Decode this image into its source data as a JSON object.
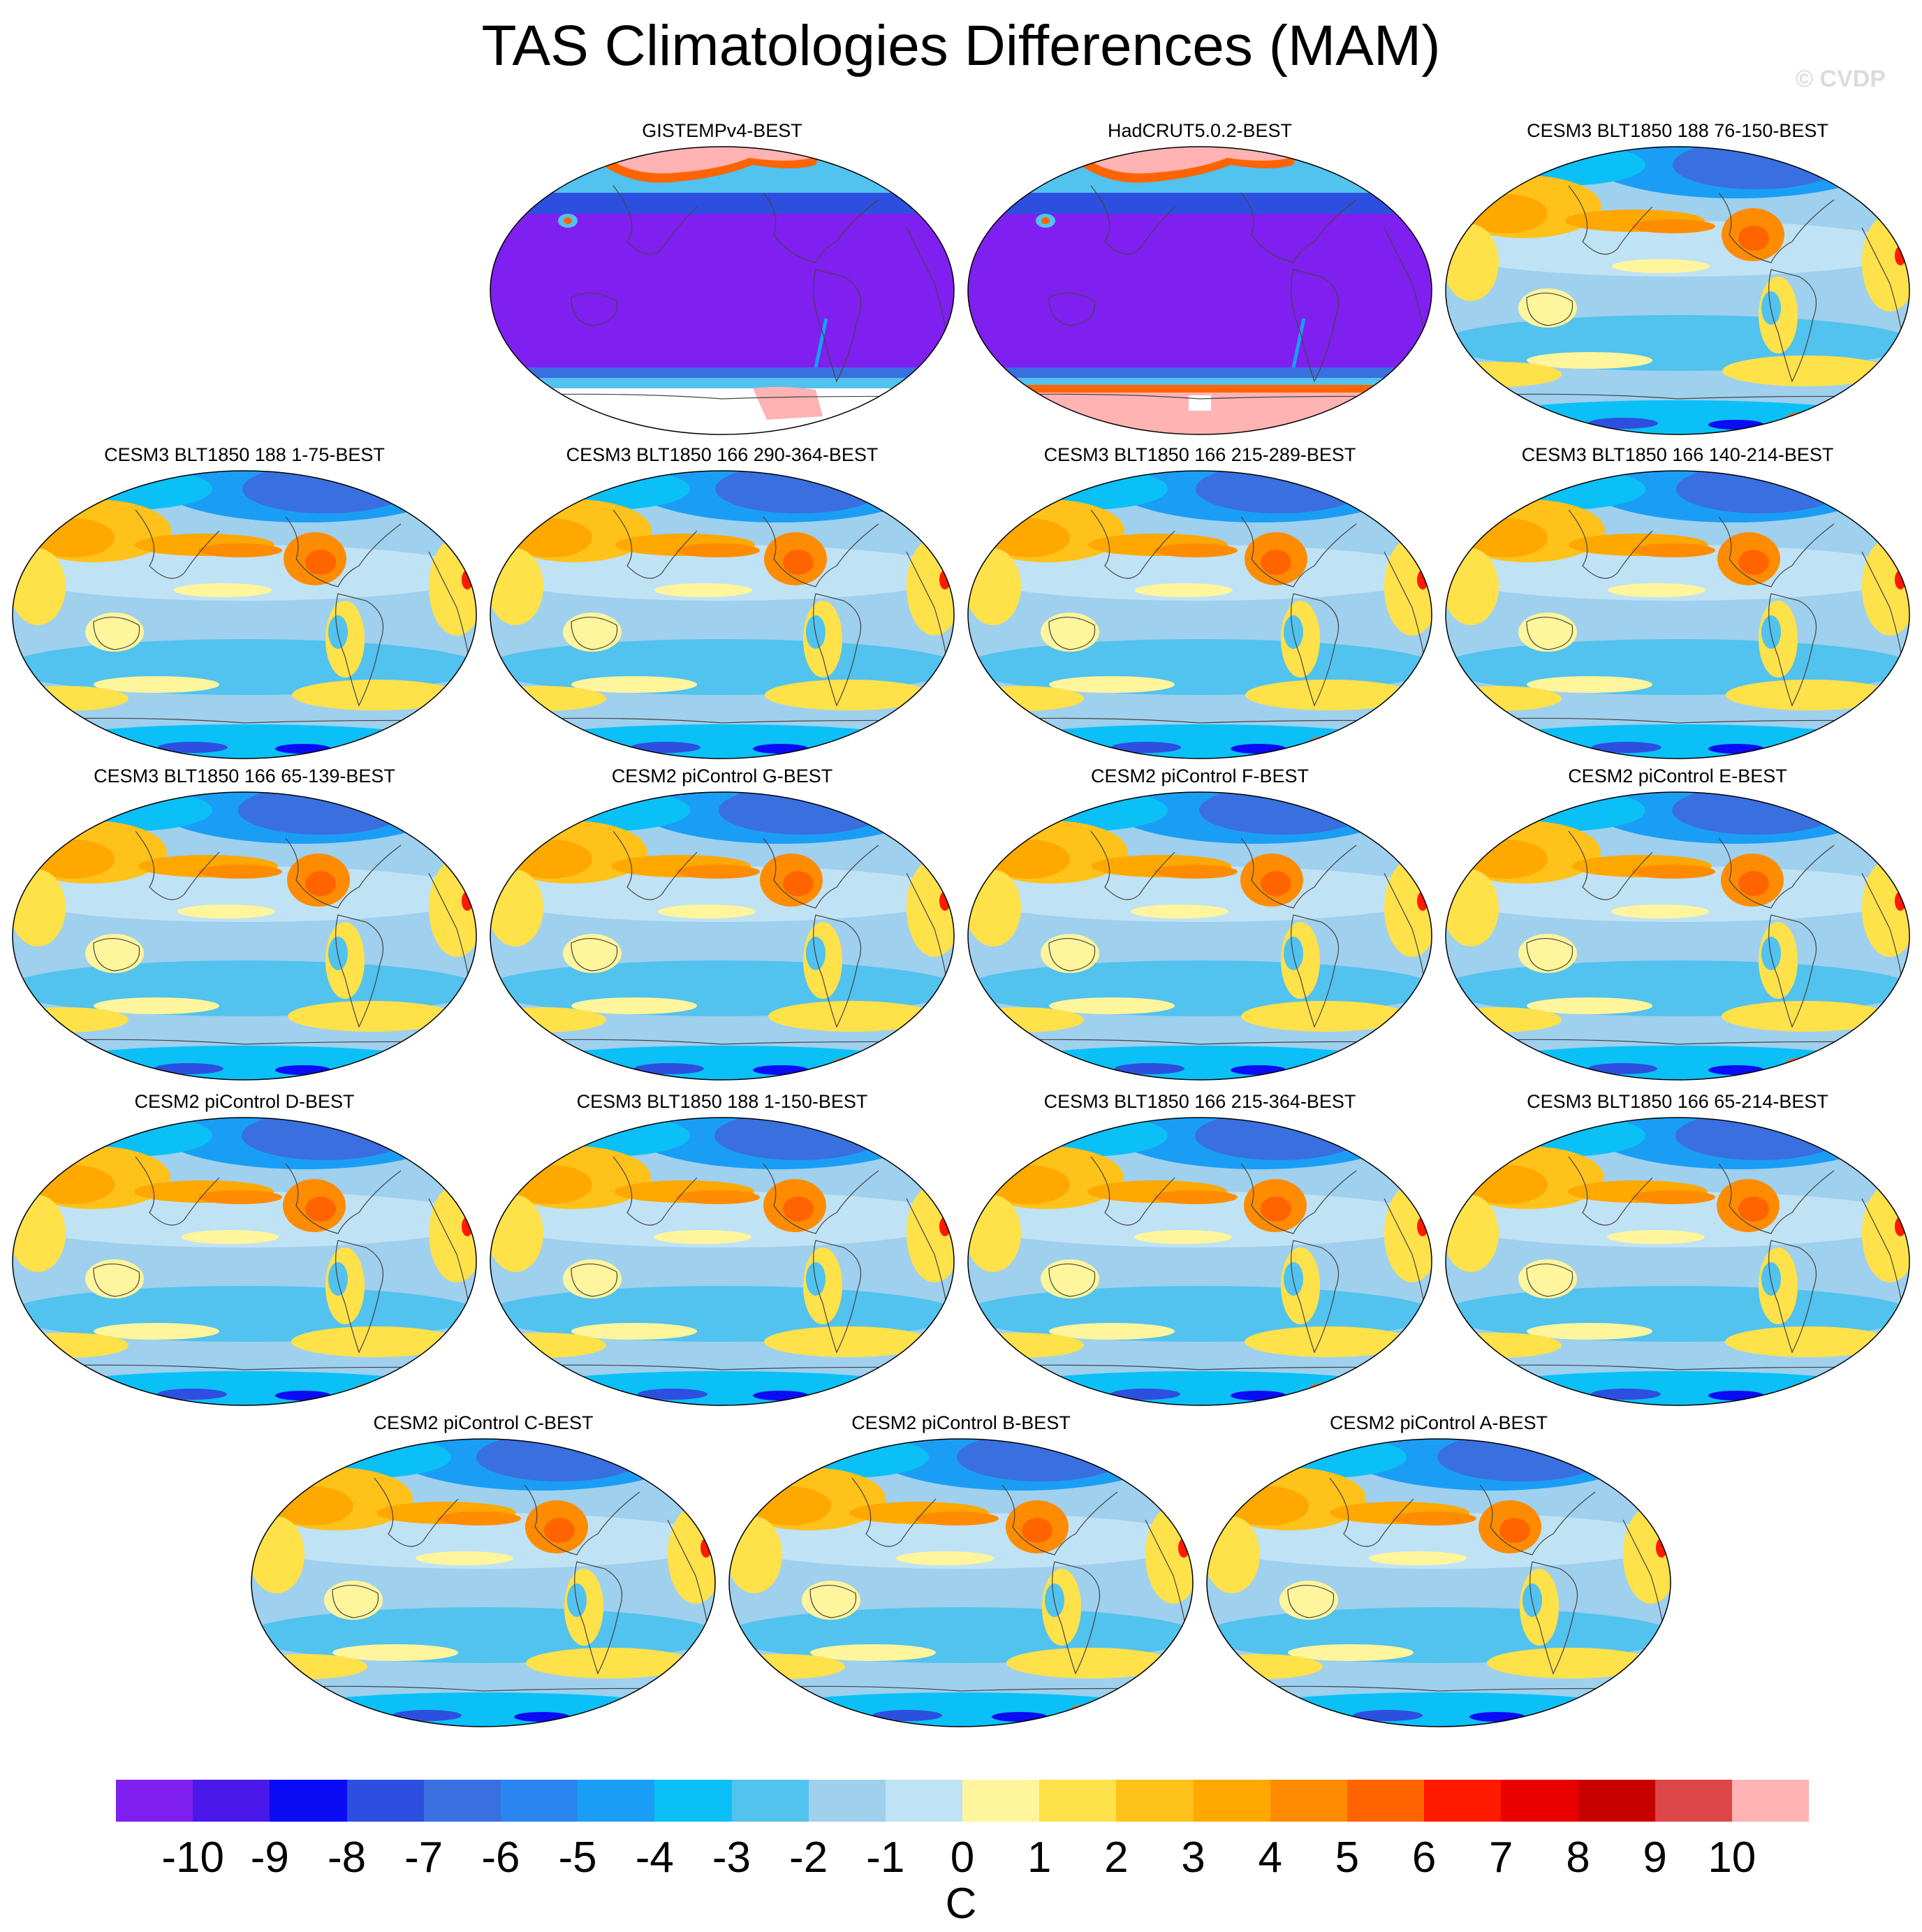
{
  "title": "TAS Climatologies Differences (MAM)",
  "watermark": "© CVDP",
  "panels": [
    {
      "title": "GISTEMPv4-BEST",
      "style": "obs-gistemp"
    },
    {
      "title": "HadCRUT5.0.2-BEST",
      "style": "obs-hadcrut"
    },
    {
      "title": "CESM3 BLT1850 188 76-150-BEST",
      "style": "model"
    },
    {
      "title": "CESM3 BLT1850 188 1-75-BEST",
      "style": "model"
    },
    {
      "title": "CESM3 BLT1850 166 290-364-BEST",
      "style": "model"
    },
    {
      "title": "CESM3 BLT1850 166 215-289-BEST",
      "style": "model"
    },
    {
      "title": "CESM3 BLT1850 166 140-214-BEST",
      "style": "model"
    },
    {
      "title": "CESM3 BLT1850 166 65-139-BEST",
      "style": "model"
    },
    {
      "title": "CESM2 piControl G-BEST",
      "style": "model"
    },
    {
      "title": "CESM2 piControl F-BEST",
      "style": "model"
    },
    {
      "title": "CESM2 piControl E-BEST",
      "style": "model"
    },
    {
      "title": "CESM2 piControl D-BEST",
      "style": "model"
    },
    {
      "title": "CESM3 BLT1850 188 1-150-BEST",
      "style": "model"
    },
    {
      "title": "CESM3 BLT1850 166 215-364-BEST",
      "style": "model"
    },
    {
      "title": "CESM3 BLT1850 166 65-214-BEST",
      "style": "model"
    },
    {
      "title": "CESM2 piControl C-BEST",
      "style": "model"
    },
    {
      "title": "CESM2 piControl B-BEST",
      "style": "model"
    },
    {
      "title": "CESM2 piControl A-BEST",
      "style": "model"
    }
  ],
  "colorbar": {
    "unit": "C",
    "labels": [
      "-10",
      "-9",
      "-8",
      "-7",
      "-6",
      "-5",
      "-4",
      "-3",
      "-2",
      "-1",
      "0",
      "1",
      "2",
      "3",
      "4",
      "5",
      "6",
      "7",
      "8",
      "9",
      "10"
    ],
    "colors": [
      "#7f1ff0",
      "#4b18ea",
      "#0b0bf5",
      "#2d4fe0",
      "#3a6fe0",
      "#2a85f0",
      "#1a9ef5",
      "#0bc0f7",
      "#52c2ee",
      "#9fd0ee",
      "#c0e2f5",
      "#fff59c",
      "#ffe14a",
      "#ffc21a",
      "#ffa800",
      "#ff8c00",
      "#ff6400",
      "#ff1a00",
      "#ea0000",
      "#c80000",
      "#dc4646",
      "#ffb3b3"
    ]
  }
}
